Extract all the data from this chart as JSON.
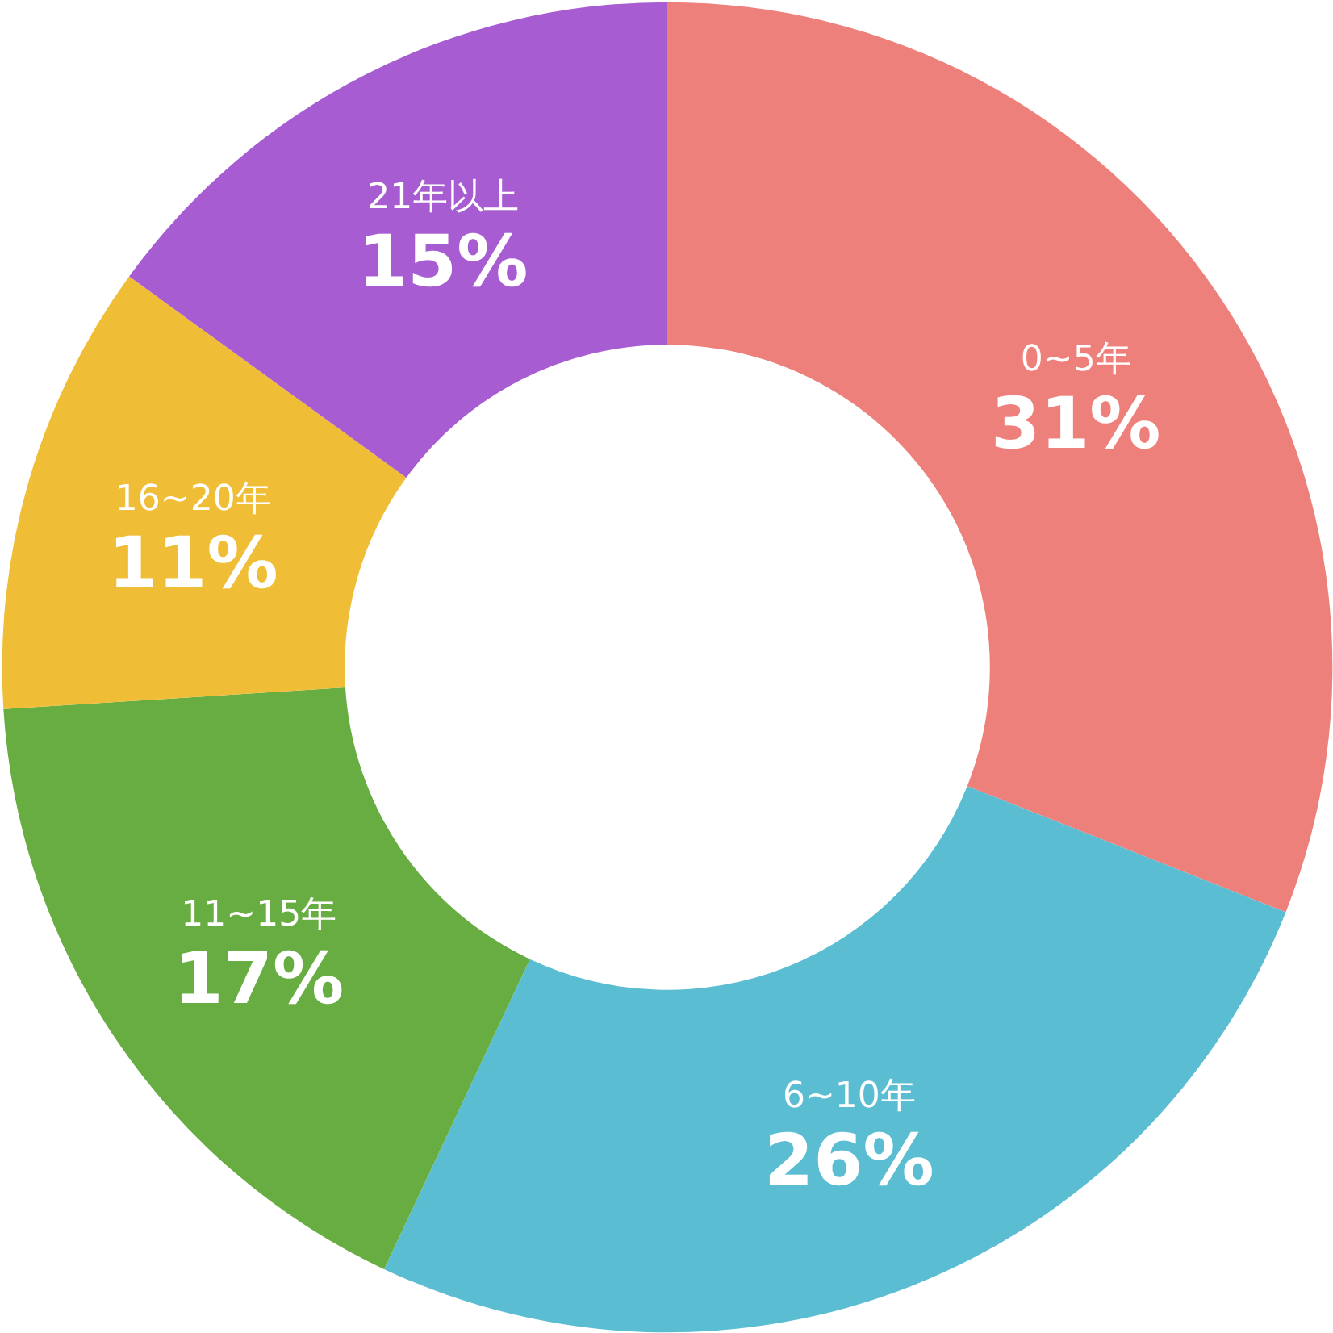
{
  "chart_data": {
    "type": "donut",
    "categories": [
      "0~5年",
      "6~10年",
      "11~15年",
      "16~20年",
      "21年以上"
    ],
    "values": [
      31,
      26,
      17,
      11,
      15
    ],
    "colors": [
      "#ee807c",
      "#5bbdd1",
      "#67ad41",
      "#efbd36",
      "#a75cd1"
    ],
    "value_labels": [
      "31%",
      "26%",
      "17%",
      "11%",
      "15%"
    ]
  }
}
